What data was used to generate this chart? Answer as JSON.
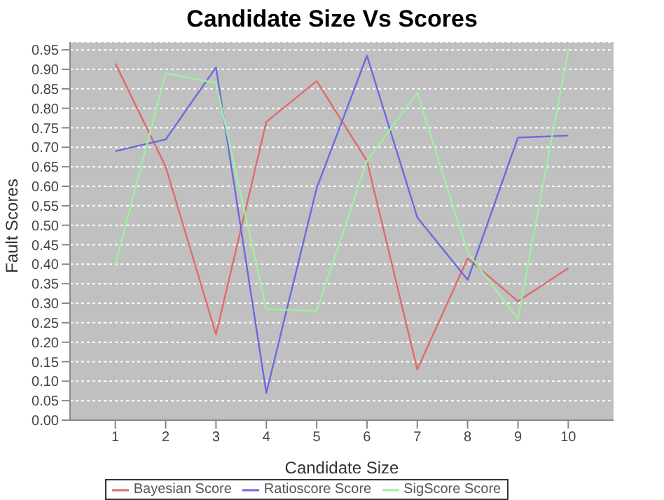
{
  "chart_data": {
    "type": "line",
    "title": "Candidate Size Vs Scores",
    "xlabel": "Candidate Size",
    "ylabel": "Fault Scores",
    "x": [
      1,
      2,
      3,
      4,
      5,
      6,
      7,
      8,
      9,
      10
    ],
    "series": [
      {
        "name": "Bayesian Score",
        "color": "#e06a6a",
        "values": [
          0.915,
          0.65,
          0.22,
          0.765,
          0.87,
          0.665,
          0.13,
          0.415,
          0.305,
          0.39
        ]
      },
      {
        "name": "Ratioscore Score",
        "color": "#6a6ae0",
        "values": [
          0.69,
          0.72,
          0.905,
          0.07,
          0.595,
          0.935,
          0.52,
          0.36,
          0.725,
          0.73
        ]
      },
      {
        "name": "SigScore Score",
        "color": "#9ef09e",
        "values": [
          0.4,
          0.89,
          0.865,
          0.285,
          0.28,
          0.665,
          0.84,
          0.43,
          0.26,
          0.95
        ]
      }
    ],
    "xlim": [
      0.1,
      10.9
    ],
    "xticks": [
      1,
      2,
      3,
      4,
      5,
      6,
      7,
      8,
      9,
      10
    ],
    "ylim": [
      0,
      0.97
    ],
    "yticks": [
      {
        "value": 0,
        "label": "0.00"
      },
      0.05,
      {
        "value": 0.1,
        "label": "0.10"
      },
      0.15,
      {
        "value": 0.2,
        "label": "0.20"
      },
      0.25,
      {
        "value": 0.3,
        "label": "0.30"
      },
      0.35,
      {
        "value": 0.4,
        "label": "0.40"
      },
      0.45,
      {
        "value": 0.5,
        "label": "0.50"
      },
      0.55,
      {
        "value": 0.6,
        "label": "0.60"
      },
      0.65,
      {
        "value": 0.7,
        "label": "0.70"
      },
      0.75,
      {
        "value": 0.8,
        "label": "0.80"
      },
      0.85,
      {
        "value": 0.9,
        "label": "0.90"
      },
      0.95
    ],
    "grid": "y",
    "legend": "bottom",
    "marker": "none",
    "line_style": "solid"
  }
}
